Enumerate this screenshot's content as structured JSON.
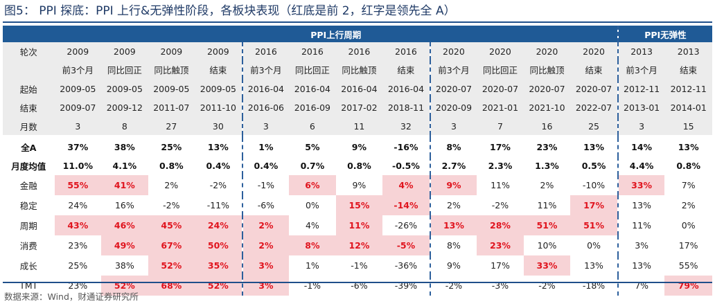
{
  "title": "图5： PPI 探底：PPI 上行&无弹性阶段，各板块表现（红底是前 2，红字是领先全 A）",
  "header": {
    "group_up": "PPI上行周期",
    "group_flat": "PPI无弹性"
  },
  "row_labels": {
    "round": "轮次",
    "start": "起始",
    "end": "结束",
    "months": "月数"
  },
  "periods": [
    {
      "year": "2009",
      "phase": "前3个月",
      "start": "2009-05",
      "end": "2009-07",
      "months": "3"
    },
    {
      "year": "2009",
      "phase": "同比回正",
      "start": "2009-05",
      "end": "2009-12",
      "months": "8"
    },
    {
      "year": "2009",
      "phase": "同比触顶",
      "start": "2009-05",
      "end": "2011-07",
      "months": "27"
    },
    {
      "year": "2009",
      "phase": "结束",
      "start": "2009-05",
      "end": "2011-10",
      "months": "30"
    },
    {
      "year": "2016",
      "phase": "前3个月",
      "start": "2016-04",
      "end": "2016-06",
      "months": "3"
    },
    {
      "year": "2016",
      "phase": "同比回正",
      "start": "2016-04",
      "end": "2016-09",
      "months": "6"
    },
    {
      "year": "2016",
      "phase": "同比触顶",
      "start": "2016-04",
      "end": "2017-02",
      "months": "11"
    },
    {
      "year": "2016",
      "phase": "结束",
      "start": "2016-04",
      "end": "2018-11",
      "months": "32"
    },
    {
      "year": "2020",
      "phase": "前3个月",
      "start": "2020-07",
      "end": "2020-09",
      "months": "3"
    },
    {
      "year": "2020",
      "phase": "同比回正",
      "start": "2020-07",
      "end": "2021-01",
      "months": "7"
    },
    {
      "year": "2020",
      "phase": "同比触顶",
      "start": "2020-07",
      "end": "2021-10",
      "months": "16"
    },
    {
      "year": "2020",
      "phase": "结束",
      "start": "2020-07",
      "end": "2022-07",
      "months": "25"
    },
    {
      "year": "2013",
      "phase": "前3个月",
      "start": "2012-11",
      "end": "2013-01",
      "months": "3"
    },
    {
      "year": "2013",
      "phase": "结束",
      "start": "2012-11",
      "end": "2014-01",
      "months": "15"
    }
  ],
  "rows": [
    {
      "label": "全A",
      "kind": "stat",
      "values": [
        "37%",
        "38%",
        "25%",
        "13%",
        "1%",
        "5%",
        "9%",
        "-16%",
        "8%",
        "17%",
        "23%",
        "13%",
        "14%",
        "13%"
      ],
      "highlight": []
    },
    {
      "label": "月度均值",
      "kind": "stat",
      "values": [
        "11.0%",
        "4.1%",
        "0.8%",
        "0.4%",
        "0.4%",
        "0.7%",
        "0.8%",
        "-0.5%",
        "2.7%",
        "2.3%",
        "1.3%",
        "0.5%",
        "4.4%",
        "0.8%"
      ],
      "highlight": []
    },
    {
      "label": "金融",
      "kind": "sector",
      "values": [
        "55%",
        "41%",
        "2%",
        "-2%",
        "-1%",
        "6%",
        "9%",
        "4%",
        "9%",
        "11%",
        "2%",
        "-10%",
        "33%",
        "7%"
      ],
      "highlight": [
        0,
        1,
        5,
        7,
        8,
        12
      ]
    },
    {
      "label": "稳定",
      "kind": "sector",
      "values": [
        "24%",
        "16%",
        "-2%",
        "-11%",
        "-6%",
        "0%",
        "15%",
        "-14%",
        "2%",
        "-2%",
        "11%",
        "17%",
        "13%",
        "2%"
      ],
      "highlight": [
        6,
        7,
        11
      ]
    },
    {
      "label": "周期",
      "kind": "sector",
      "values": [
        "43%",
        "46%",
        "45%",
        "24%",
        "2%",
        "4%",
        "11%",
        "-26%",
        "13%",
        "28%",
        "51%",
        "51%",
        "11%",
        "0%"
      ],
      "highlight": [
        0,
        1,
        2,
        3,
        4,
        6,
        8,
        9,
        10,
        11
      ]
    },
    {
      "label": "消费",
      "kind": "sector",
      "values": [
        "23%",
        "49%",
        "67%",
        "50%",
        "2%",
        "8%",
        "12%",
        "-5%",
        "8%",
        "23%",
        "10%",
        "0%",
        "3%",
        "17%"
      ],
      "highlight": [
        1,
        2,
        3,
        4,
        5,
        6,
        7,
        9
      ]
    },
    {
      "label": "成长",
      "kind": "sector",
      "values": [
        "25%",
        "38%",
        "52%",
        "35%",
        "3%",
        "1%",
        "-1%",
        "-36%",
        "9%",
        "17%",
        "33%",
        "13%",
        "13%",
        "55%"
      ],
      "highlight": [
        2,
        3,
        4,
        10
      ]
    },
    {
      "label": "TMT",
      "kind": "sector",
      "values": [
        "23%",
        "52%",
        "68%",
        "52%",
        "3%",
        "-1%",
        "-6%",
        "-39%",
        "-2%",
        "-3%",
        "-2%",
        "-18%",
        "7%",
        "79%"
      ],
      "highlight": [
        1,
        2,
        3,
        4,
        13
      ]
    }
  ],
  "colors": {
    "header_bg": "#1f5a96",
    "highlight_bg": "#f7d3d6",
    "highlight_text": "#e0141e",
    "info_bg": "#ececec"
  },
  "source": "数据来源：Wind，财通证券研究所"
}
